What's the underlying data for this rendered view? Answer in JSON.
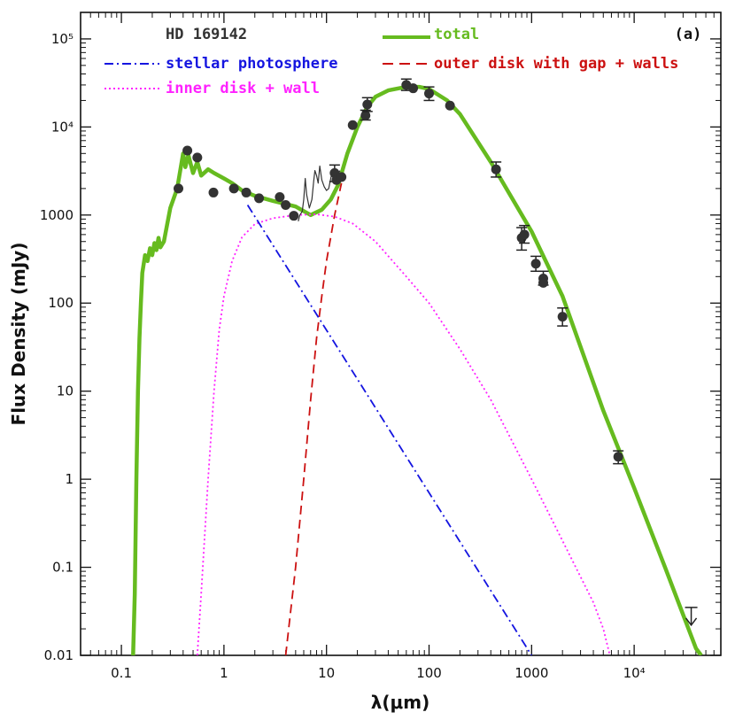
{
  "chart_data": {
    "type": "line",
    "title": "HD 169142",
    "panel_label": "(a)",
    "xlabel": "λ(μm)",
    "ylabel": "Flux Density (mJy)",
    "xscale": "log",
    "yscale": "log",
    "xlim": [
      0.04,
      70000
    ],
    "ylim": [
      0.01,
      200000
    ],
    "x_ticks": [
      {
        "value": 0.1,
        "label": "0.1"
      },
      {
        "value": 1,
        "label": "1"
      },
      {
        "value": 10,
        "label": "10"
      },
      {
        "value": 100,
        "label": "100"
      },
      {
        "value": 1000,
        "label": "1000"
      },
      {
        "value": 10000,
        "label": "10⁴"
      }
    ],
    "y_ticks": [
      {
        "value": 0.01,
        "label": "0.01"
      },
      {
        "value": 0.1,
        "label": "0.1"
      },
      {
        "value": 1,
        "label": "1"
      },
      {
        "value": 10,
        "label": "10"
      },
      {
        "value": 100,
        "label": "100"
      },
      {
        "value": 1000,
        "label": "1000"
      },
      {
        "value": 10000,
        "label": "10⁴"
      },
      {
        "value": 100000,
        "label": "10⁵"
      }
    ],
    "legend": [
      {
        "id": "stellar",
        "label": "stellar photosphere",
        "color": "#1515e0",
        "dash": "dashdot"
      },
      {
        "id": "inner",
        "label": "inner disk + wall",
        "color": "#ff22ff",
        "dash": "dotted"
      },
      {
        "id": "total",
        "label": "total",
        "color": "#66bb1f",
        "dash": "solid"
      },
      {
        "id": "outer",
        "label": "outer disk with gap + walls",
        "color": "#cc1111",
        "dash": "dashed"
      }
    ],
    "series": [
      {
        "id": "stellar",
        "name": "stellar photosphere",
        "points": [
          [
            1.7,
            1300
          ],
          [
            1000,
            0.01
          ]
        ]
      },
      {
        "id": "inner",
        "name": "inner disk + wall",
        "points": [
          [
            0.55,
            0.01
          ],
          [
            0.6,
            0.05
          ],
          [
            0.7,
            1
          ],
          [
            0.8,
            10
          ],
          [
            0.9,
            50
          ],
          [
            1.0,
            120
          ],
          [
            1.2,
            300
          ],
          [
            1.5,
            560
          ],
          [
            2.0,
            790
          ],
          [
            3.0,
            920
          ],
          [
            5.0,
            1000
          ],
          [
            8.0,
            1020
          ],
          [
            12.0,
            960
          ],
          [
            18.0,
            800
          ],
          [
            30.0,
            500
          ],
          [
            60.0,
            200
          ],
          [
            100.0,
            100
          ],
          [
            200.0,
            30
          ],
          [
            400.0,
            8
          ],
          [
            1000.0,
            1.0
          ],
          [
            2000.0,
            0.2
          ],
          [
            4000.0,
            0.04
          ],
          [
            5000.0,
            0.02
          ],
          [
            5800.0,
            0.01
          ]
        ]
      },
      {
        "id": "outer",
        "name": "outer disk with gap + walls",
        "points": [
          [
            4.0,
            0.01
          ],
          [
            5.0,
            0.1
          ],
          [
            6.0,
            1
          ],
          [
            7.0,
            8
          ],
          [
            8.0,
            40
          ],
          [
            9.0,
            120
          ],
          [
            10.0,
            300
          ],
          [
            12.0,
            1000
          ],
          [
            14.0,
            2300
          ]
        ]
      },
      {
        "id": "total",
        "name": "total",
        "points": [
          [
            0.13,
            0.01
          ],
          [
            0.135,
            0.05
          ],
          [
            0.14,
            1
          ],
          [
            0.145,
            10
          ],
          [
            0.15,
            40
          ],
          [
            0.155,
            100
          ],
          [
            0.16,
            220
          ],
          [
            0.17,
            350
          ],
          [
            0.18,
            300
          ],
          [
            0.19,
            420
          ],
          [
            0.2,
            350
          ],
          [
            0.21,
            480
          ],
          [
            0.22,
            400
          ],
          [
            0.23,
            550
          ],
          [
            0.24,
            430
          ],
          [
            0.26,
            500
          ],
          [
            0.3,
            1200
          ],
          [
            0.35,
            2000
          ],
          [
            0.4,
            5000
          ],
          [
            0.42,
            3500
          ],
          [
            0.45,
            4800
          ],
          [
            0.5,
            3000
          ],
          [
            0.55,
            4000
          ],
          [
            0.6,
            2800
          ],
          [
            0.7,
            3300
          ],
          [
            0.8,
            3000
          ],
          [
            1.0,
            2600
          ],
          [
            1.2,
            2300
          ],
          [
            1.5,
            1900
          ],
          [
            2.0,
            1650
          ],
          [
            3.0,
            1450
          ],
          [
            5.0,
            1250
          ],
          [
            7.0,
            1000
          ],
          [
            9.0,
            1150
          ],
          [
            11.0,
            1500
          ],
          [
            13.0,
            2200
          ],
          [
            16.0,
            5000
          ],
          [
            20.0,
            10000
          ],
          [
            25.0,
            17000
          ],
          [
            30.0,
            22000
          ],
          [
            40.0,
            26000
          ],
          [
            60.0,
            28500
          ],
          [
            80.0,
            28500
          ],
          [
            100.0,
            27000
          ],
          [
            150.0,
            20000
          ],
          [
            200.0,
            14000
          ],
          [
            400.0,
            4000
          ],
          [
            1000.0,
            650
          ],
          [
            2000.0,
            120
          ],
          [
            5000.0,
            6
          ],
          [
            10000.0,
            0.8
          ],
          [
            20000.0,
            0.1
          ],
          [
            40000.0,
            0.012
          ],
          [
            45000.0,
            0.01
          ]
        ]
      },
      {
        "id": "spectrum",
        "name": "IRS spectrum",
        "points": [
          [
            5.3,
            850
          ],
          [
            5.5,
            1000
          ],
          [
            5.8,
            1100
          ],
          [
            6.0,
            1500
          ],
          [
            6.2,
            2600
          ],
          [
            6.4,
            1700
          ],
          [
            6.8,
            1200
          ],
          [
            7.2,
            1500
          ],
          [
            7.5,
            2400
          ],
          [
            7.7,
            3200
          ],
          [
            8.0,
            2800
          ],
          [
            8.3,
            2300
          ],
          [
            8.6,
            3600
          ],
          [
            9.0,
            2500
          ],
          [
            9.5,
            2100
          ],
          [
            10.0,
            1900
          ],
          [
            10.5,
            2000
          ],
          [
            11.0,
            2600
          ],
          [
            11.3,
            3000
          ],
          [
            11.7,
            2600
          ],
          [
            12.5,
            2600
          ],
          [
            13.5,
            3200
          ]
        ]
      }
    ],
    "observations": [
      {
        "x": 0.36,
        "y": 2000
      },
      {
        "x": 0.44,
        "y": 5400
      },
      {
        "x": 0.55,
        "y": 4500
      },
      {
        "x": 0.79,
        "y": 1800
      },
      {
        "x": 1.25,
        "y": 2000
      },
      {
        "x": 1.65,
        "y": 1800
      },
      {
        "x": 2.2,
        "y": 1550
      },
      {
        "x": 3.5,
        "y": 1600
      },
      {
        "x": 4.0,
        "y": 1300
      },
      {
        "x": 4.8,
        "y": 980
      },
      {
        "x": 12.0,
        "y": 3000,
        "err_lo": 2400,
        "err_hi": 3700
      },
      {
        "x": 12.5,
        "y": 2500
      },
      {
        "x": 14.0,
        "y": 2700
      },
      {
        "x": 18.0,
        "y": 10500
      },
      {
        "x": 24.0,
        "y": 13500,
        "err_lo": 12000,
        "err_hi": 15500
      },
      {
        "x": 25.0,
        "y": 18000,
        "err_lo": 15000,
        "err_hi": 21500
      },
      {
        "x": 60.0,
        "y": 30000,
        "err_lo": 26000,
        "err_hi": 35000
      },
      {
        "x": 70.0,
        "y": 27500
      },
      {
        "x": 100.0,
        "y": 24000,
        "err_lo": 20000,
        "err_hi": 28500
      },
      {
        "x": 160.0,
        "y": 17500
      },
      {
        "x": 450.0,
        "y": 3300,
        "err_lo": 2700,
        "err_hi": 4000
      },
      {
        "x": 800.0,
        "y": 550,
        "err_lo": 400,
        "err_hi": 720
      },
      {
        "x": 850.0,
        "y": 600,
        "err_lo": 480,
        "err_hi": 760
      },
      {
        "x": 1100.0,
        "y": 280,
        "err_lo": 230,
        "err_hi": 340
      },
      {
        "x": 1300.0,
        "y": 190,
        "err_lo": 160,
        "err_hi": 230
      },
      {
        "x": 1300.0,
        "y": 170
      },
      {
        "x": 2000.0,
        "y": 70,
        "err_lo": 55,
        "err_hi": 88
      },
      {
        "x": 7000.0,
        "y": 1.8,
        "err_lo": 1.5,
        "err_hi": 2.1
      }
    ],
    "upper_limits": [
      {
        "x": 36000.0,
        "y": 0.035
      }
    ]
  }
}
